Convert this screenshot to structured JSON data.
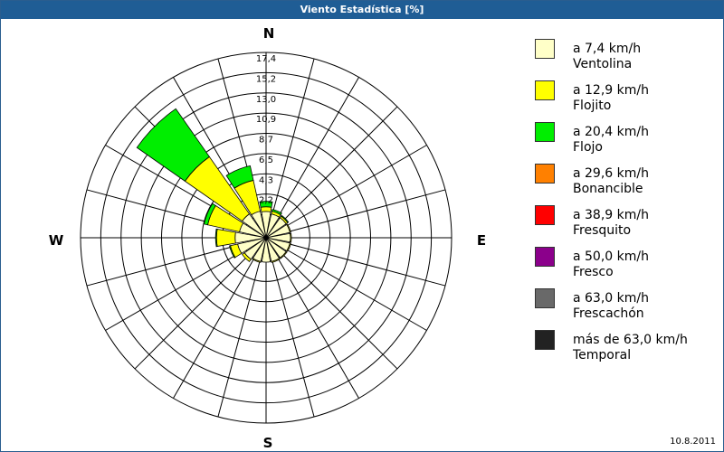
{
  "window": {
    "title": "Viento Estadística [%]"
  },
  "footer": {
    "date": "10.8.2011"
  },
  "compass": {
    "n": "N",
    "e": "E",
    "s": "S",
    "w": "W"
  },
  "chart_data": {
    "type": "windrose",
    "title": "Viento Estadística [%]",
    "unit": "%",
    "ring_labels": [
      "2,2",
      "4,3",
      "6,5",
      "8,7",
      "10,9",
      "13,0",
      "15,2",
      "17,4"
    ],
    "rmax": 17.4,
    "sectors": 16,
    "directions": [
      "N",
      "NNE",
      "NE",
      "ENE",
      "E",
      "ESE",
      "SE",
      "SSE",
      "S",
      "SSW",
      "SW",
      "WSW",
      "W",
      "WNW",
      "NW",
      "NNW"
    ],
    "legend_position": "right",
    "series": [
      {
        "speed": "a 7,4 km/h",
        "name": "Ventolina",
        "color": "#ffffc8",
        "values": [
          0.3,
          0.1,
          0.1,
          0.1,
          0.1,
          0.1,
          0.1,
          0.1,
          0.1,
          0.1,
          0.3,
          0.6,
          0.8,
          0.4,
          0.6,
          0.4
        ]
      },
      {
        "speed": "a 12,9 km/h",
        "name": "Flojito",
        "color": "#ffff00",
        "values": [
          0.5,
          0.3,
          0.2,
          0.1,
          0.1,
          0.1,
          0.1,
          0.1,
          0.0,
          0.1,
          0.3,
          0.8,
          2.0,
          3.5,
          7.5,
          3.4
        ]
      },
      {
        "speed": "a 20,4 km/h",
        "name": "Flojo",
        "color": "#00ee00",
        "values": [
          0.6,
          0.2,
          0.1,
          0.0,
          0.0,
          0.0,
          0.0,
          0.0,
          0.0,
          0.0,
          0.0,
          0.1,
          0.1,
          0.4,
          6.3,
          1.6
        ]
      },
      {
        "speed": "a 29,6 km/h",
        "name": "Bonancible",
        "color": "#ff8000",
        "values": [
          0,
          0,
          0,
          0,
          0,
          0,
          0,
          0,
          0,
          0,
          0,
          0,
          0,
          0,
          0,
          0
        ]
      },
      {
        "speed": "a 38,9 km/h",
        "name": "Fresquito",
        "color": "#ff0000",
        "values": [
          0,
          0,
          0,
          0,
          0,
          0,
          0,
          0,
          0,
          0,
          0,
          0,
          0,
          0,
          0,
          0
        ]
      },
      {
        "speed": "a 50,0 km/h",
        "name": "Fresco",
        "color": "#8b008b",
        "values": [
          0,
          0,
          0,
          0,
          0,
          0,
          0,
          0,
          0,
          0,
          0,
          0,
          0,
          0,
          0,
          0
        ]
      },
      {
        "speed": "a 63,0 km/h",
        "name": "Frescachón",
        "color": "#696969",
        "values": [
          0,
          0,
          0,
          0,
          0,
          0,
          0,
          0,
          0,
          0,
          0,
          0,
          0,
          0,
          0,
          0
        ]
      },
      {
        "speed": "más de 63,0 km/h",
        "name": "Temporal",
        "color": "#222222",
        "values": [
          0,
          0,
          0,
          0,
          0,
          0,
          0,
          0,
          0,
          0,
          0,
          0,
          0,
          0,
          0,
          0
        ]
      }
    ],
    "segment_values_note": ""
  }
}
